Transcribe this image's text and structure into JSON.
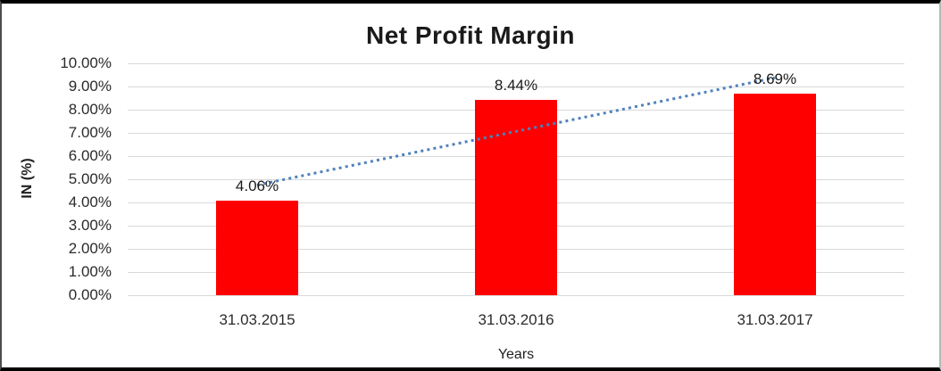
{
  "chart_data": {
    "type": "bar",
    "title": "Net Profit Margin",
    "categories": [
      "31.03.2015",
      "31.03.2016",
      "31.03.2017"
    ],
    "values": [
      4.06,
      8.44,
      8.69
    ],
    "data_labels": [
      "4.06%",
      "8.44%",
      "8.69%"
    ],
    "xlabel": "Years",
    "ylabel": "IN (%)",
    "ylim": [
      0,
      10
    ],
    "ytick_labels": [
      "10.00%",
      "9.00%",
      "8.00%",
      "7.00%",
      "6.00%",
      "5.00%",
      "4.00%",
      "3.00%",
      "2.00%",
      "1.00%",
      "0.00%"
    ],
    "grid": true,
    "legend": "none",
    "bar_color": "#ff0000",
    "gridline_color": "#d9d9d9",
    "trendline": {
      "type": "linear",
      "style": "dotted",
      "color": "#4f81bd"
    }
  }
}
